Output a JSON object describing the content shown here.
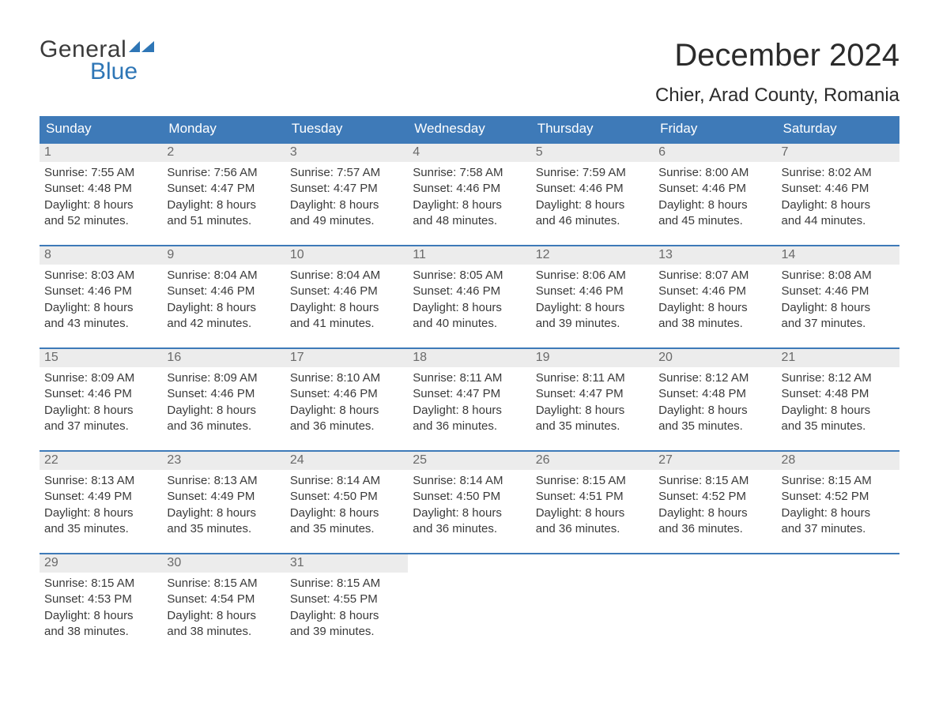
{
  "brand": {
    "text1": "General",
    "text2": "Blue",
    "accent": "#2e76b6"
  },
  "title": "December 2024",
  "location": "Chier, Arad County, Romania",
  "colors": {
    "header_bg": "#3e7ab8",
    "header_text": "#ffffff",
    "week_border": "#3e7ab8",
    "daynum_bg": "#ececec",
    "daynum_text": "#6a6a6a",
    "body_text": "#3a3a3a",
    "page_bg": "#ffffff"
  },
  "typography": {
    "title_fontsize": 40,
    "location_fontsize": 24,
    "header_fontsize": 17,
    "daynum_fontsize": 16,
    "body_fontsize": 15
  },
  "dayHeaders": [
    "Sunday",
    "Monday",
    "Tuesday",
    "Wednesday",
    "Thursday",
    "Friday",
    "Saturday"
  ],
  "weeks": [
    [
      {
        "n": "1",
        "sunrise": "7:55 AM",
        "sunset": "4:48 PM",
        "dhr": "8",
        "dmin": "52"
      },
      {
        "n": "2",
        "sunrise": "7:56 AM",
        "sunset": "4:47 PM",
        "dhr": "8",
        "dmin": "51"
      },
      {
        "n": "3",
        "sunrise": "7:57 AM",
        "sunset": "4:47 PM",
        "dhr": "8",
        "dmin": "49"
      },
      {
        "n": "4",
        "sunrise": "7:58 AM",
        "sunset": "4:46 PM",
        "dhr": "8",
        "dmin": "48"
      },
      {
        "n": "5",
        "sunrise": "7:59 AM",
        "sunset": "4:46 PM",
        "dhr": "8",
        "dmin": "46"
      },
      {
        "n": "6",
        "sunrise": "8:00 AM",
        "sunset": "4:46 PM",
        "dhr": "8",
        "dmin": "45"
      },
      {
        "n": "7",
        "sunrise": "8:02 AM",
        "sunset": "4:46 PM",
        "dhr": "8",
        "dmin": "44"
      }
    ],
    [
      {
        "n": "8",
        "sunrise": "8:03 AM",
        "sunset": "4:46 PM",
        "dhr": "8",
        "dmin": "43"
      },
      {
        "n": "9",
        "sunrise": "8:04 AM",
        "sunset": "4:46 PM",
        "dhr": "8",
        "dmin": "42"
      },
      {
        "n": "10",
        "sunrise": "8:04 AM",
        "sunset": "4:46 PM",
        "dhr": "8",
        "dmin": "41"
      },
      {
        "n": "11",
        "sunrise": "8:05 AM",
        "sunset": "4:46 PM",
        "dhr": "8",
        "dmin": "40"
      },
      {
        "n": "12",
        "sunrise": "8:06 AM",
        "sunset": "4:46 PM",
        "dhr": "8",
        "dmin": "39"
      },
      {
        "n": "13",
        "sunrise": "8:07 AM",
        "sunset": "4:46 PM",
        "dhr": "8",
        "dmin": "38"
      },
      {
        "n": "14",
        "sunrise": "8:08 AM",
        "sunset": "4:46 PM",
        "dhr": "8",
        "dmin": "37"
      }
    ],
    [
      {
        "n": "15",
        "sunrise": "8:09 AM",
        "sunset": "4:46 PM",
        "dhr": "8",
        "dmin": "37"
      },
      {
        "n": "16",
        "sunrise": "8:09 AM",
        "sunset": "4:46 PM",
        "dhr": "8",
        "dmin": "36"
      },
      {
        "n": "17",
        "sunrise": "8:10 AM",
        "sunset": "4:46 PM",
        "dhr": "8",
        "dmin": "36"
      },
      {
        "n": "18",
        "sunrise": "8:11 AM",
        "sunset": "4:47 PM",
        "dhr": "8",
        "dmin": "36"
      },
      {
        "n": "19",
        "sunrise": "8:11 AM",
        "sunset": "4:47 PM",
        "dhr": "8",
        "dmin": "35"
      },
      {
        "n": "20",
        "sunrise": "8:12 AM",
        "sunset": "4:48 PM",
        "dhr": "8",
        "dmin": "35"
      },
      {
        "n": "21",
        "sunrise": "8:12 AM",
        "sunset": "4:48 PM",
        "dhr": "8",
        "dmin": "35"
      }
    ],
    [
      {
        "n": "22",
        "sunrise": "8:13 AM",
        "sunset": "4:49 PM",
        "dhr": "8",
        "dmin": "35"
      },
      {
        "n": "23",
        "sunrise": "8:13 AM",
        "sunset": "4:49 PM",
        "dhr": "8",
        "dmin": "35"
      },
      {
        "n": "24",
        "sunrise": "8:14 AM",
        "sunset": "4:50 PM",
        "dhr": "8",
        "dmin": "35"
      },
      {
        "n": "25",
        "sunrise": "8:14 AM",
        "sunset": "4:50 PM",
        "dhr": "8",
        "dmin": "36"
      },
      {
        "n": "26",
        "sunrise": "8:15 AM",
        "sunset": "4:51 PM",
        "dhr": "8",
        "dmin": "36"
      },
      {
        "n": "27",
        "sunrise": "8:15 AM",
        "sunset": "4:52 PM",
        "dhr": "8",
        "dmin": "36"
      },
      {
        "n": "28",
        "sunrise": "8:15 AM",
        "sunset": "4:52 PM",
        "dhr": "8",
        "dmin": "37"
      }
    ],
    [
      {
        "n": "29",
        "sunrise": "8:15 AM",
        "sunset": "4:53 PM",
        "dhr": "8",
        "dmin": "38"
      },
      {
        "n": "30",
        "sunrise": "8:15 AM",
        "sunset": "4:54 PM",
        "dhr": "8",
        "dmin": "38"
      },
      {
        "n": "31",
        "sunrise": "8:15 AM",
        "sunset": "4:55 PM",
        "dhr": "8",
        "dmin": "39"
      },
      null,
      null,
      null,
      null
    ]
  ],
  "labels": {
    "sunrise": "Sunrise: ",
    "sunset": "Sunset: ",
    "daylight1": "Daylight: ",
    "hours": " hours",
    "and": "and ",
    "minutes": " minutes."
  }
}
